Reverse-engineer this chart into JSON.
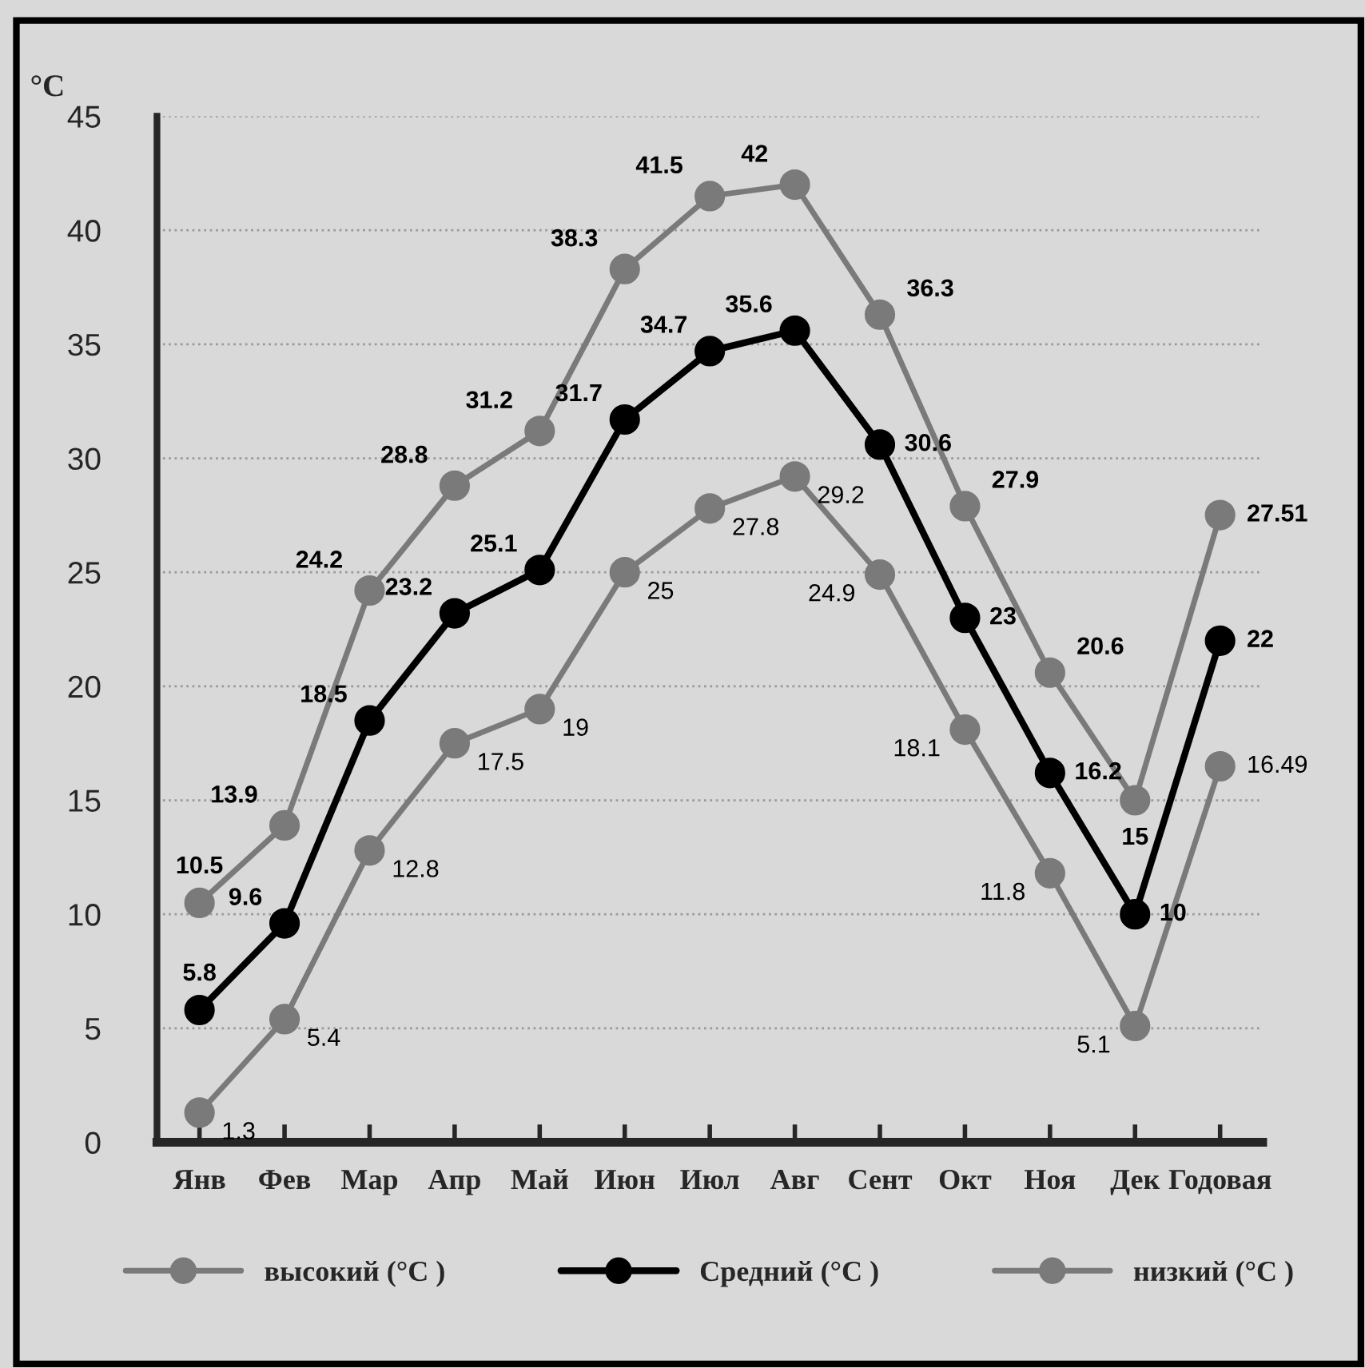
{
  "chart_data": {
    "type": "line",
    "ylabel": "°C",
    "categories": [
      "Янв",
      "Фев",
      "Мар",
      "Апр",
      "Май",
      "Июн",
      "Июл",
      "Авг",
      "Сент",
      "Окт",
      "Ноя",
      "Дек",
      "Годовая"
    ],
    "series": [
      {
        "name": "высокий (°C )",
        "color": "#7a7a7a",
        "values": [
          10.5,
          13.9,
          24.2,
          28.8,
          31.2,
          38.3,
          41.5,
          42,
          36.3,
          27.9,
          20.6,
          15,
          27.51
        ]
      },
      {
        "name": "Средний (°C )",
        "color": "#000000",
        "values": [
          5.8,
          9.6,
          18.5,
          23.2,
          25.1,
          31.7,
          34.7,
          35.6,
          30.6,
          23,
          16.2,
          10,
          22
        ]
      },
      {
        "name": "низкий (°C )",
        "color": "#7a7a7a",
        "values": [
          1.3,
          5.4,
          12.8,
          17.5,
          19,
          25,
          27.8,
          29.2,
          24.9,
          18.1,
          11.8,
          5.1,
          16.49
        ]
      }
    ],
    "ylim": [
      0,
      45
    ],
    "yticks": [
      0,
      5,
      10,
      15,
      20,
      25,
      30,
      35,
      40,
      45
    ],
    "grid": "y",
    "legend": "bottom",
    "marker": "circle",
    "line_style": "solid",
    "data_labels": true
  }
}
